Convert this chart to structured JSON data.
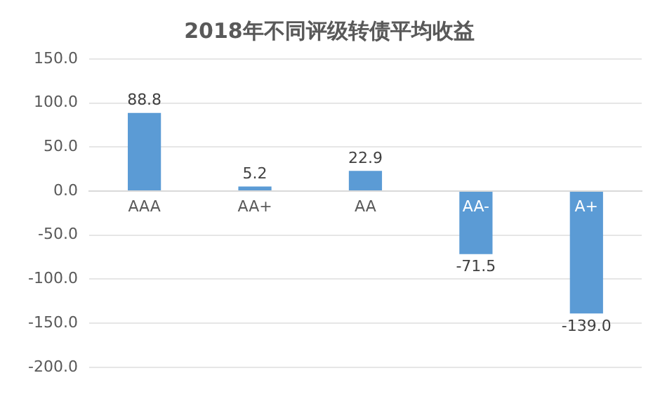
{
  "chart_data": {
    "type": "bar",
    "title": "2018年不同评级转债平均收益",
    "categories": [
      "AAA",
      "AA+",
      "AA",
      "AA-",
      "A+"
    ],
    "values": [
      88.8,
      5.2,
      22.9,
      -71.5,
      -139.0
    ],
    "value_labels": [
      "88.8",
      "5.2",
      "22.9",
      "-71.5",
      "-139.0"
    ],
    "color": "#5b9bd5",
    "ylim": [
      -200,
      150
    ],
    "yticks": [
      {
        "value": -200,
        "label": "-200.0"
      },
      {
        "value": -150,
        "label": "-150.0"
      },
      {
        "value": -100,
        "label": "-100.0"
      },
      {
        "value": -50,
        "label": "-50.0"
      },
      {
        "value": 0,
        "label": "0.0"
      },
      {
        "value": 50,
        "label": "50.0"
      },
      {
        "value": 100,
        "label": "100.0"
      },
      {
        "value": 150,
        "label": "150.0"
      }
    ],
    "grid": "y",
    "legend": false
  }
}
